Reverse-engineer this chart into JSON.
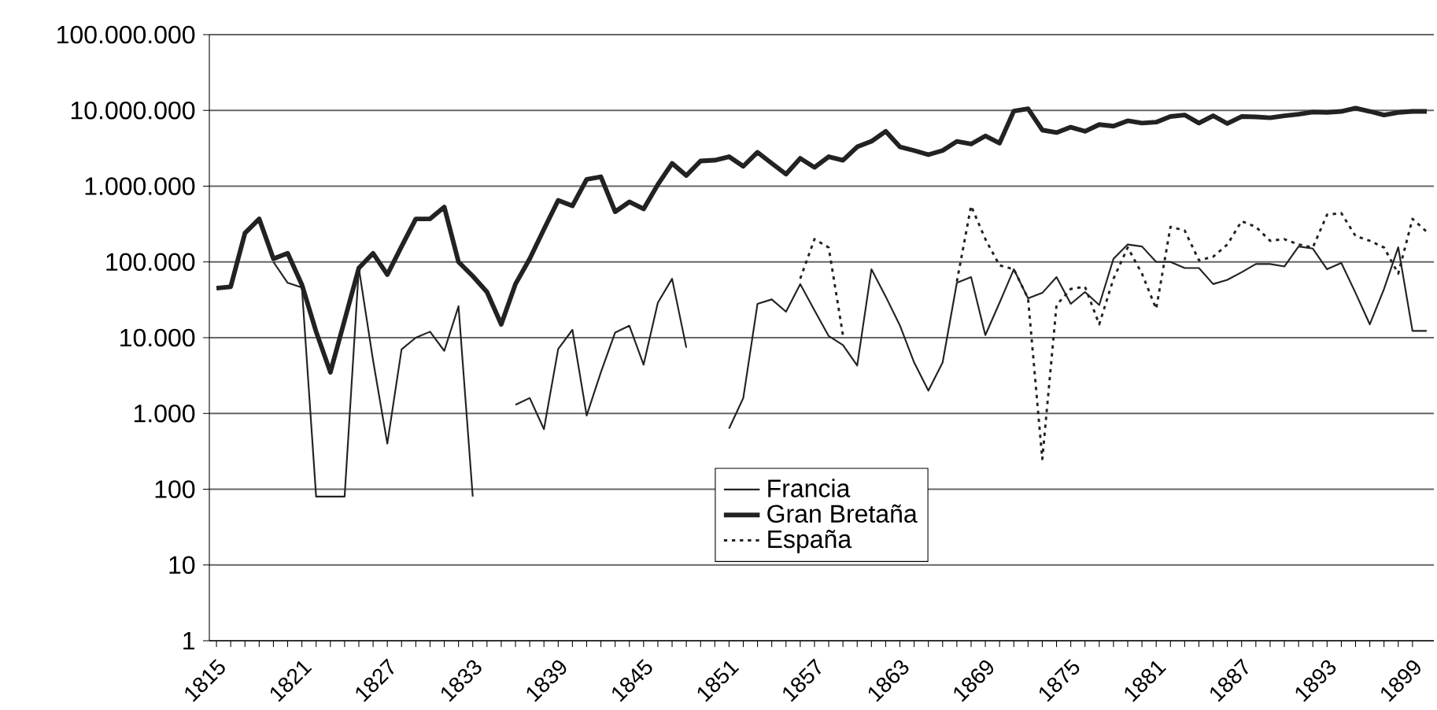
{
  "chart_data": {
    "type": "line",
    "x": [
      1815,
      1816,
      1817,
      1818,
      1819,
      1820,
      1821,
      1822,
      1823,
      1824,
      1825,
      1826,
      1827,
      1828,
      1829,
      1830,
      1831,
      1832,
      1833,
      1834,
      1835,
      1836,
      1837,
      1838,
      1839,
      1840,
      1841,
      1842,
      1843,
      1844,
      1845,
      1846,
      1847,
      1848,
      1849,
      1850,
      1851,
      1852,
      1853,
      1854,
      1855,
      1856,
      1857,
      1858,
      1859,
      1860,
      1861,
      1862,
      1863,
      1864,
      1865,
      1866,
      1867,
      1868,
      1869,
      1870,
      1871,
      1872,
      1873,
      1874,
      1875,
      1876,
      1877,
      1878,
      1879,
      1880,
      1881,
      1882,
      1883,
      1884,
      1885,
      1886,
      1887,
      1888,
      1889,
      1890,
      1891,
      1892,
      1893,
      1894,
      1895,
      1896,
      1897,
      1898,
      1899,
      1900
    ],
    "series": [
      {
        "name": "Francia",
        "color": "#222222",
        "line_style": "solid",
        "values": [
          null,
          null,
          null,
          null,
          100000,
          53000,
          46000,
          80,
          80,
          80,
          83000,
          5000,
          400,
          7000,
          10000,
          12000,
          6700,
          26000,
          80,
          null,
          null,
          1300,
          1600,
          620,
          7100,
          12700,
          940,
          3500,
          11700,
          14400,
          4400,
          29000,
          60000,
          7400,
          null,
          null,
          630,
          1600,
          28000,
          32000,
          22000,
          51000,
          23000,
          10500,
          8000,
          4300,
          80000,
          35000,
          14500,
          4700,
          2000,
          4700,
          53000,
          63000,
          10800,
          29000,
          80000,
          33000,
          39000,
          63000,
          28000,
          40000,
          27000,
          110000,
          170000,
          160000,
          100000,
          100000,
          83000,
          83000,
          51000,
          58000,
          73000,
          94000,
          94000,
          87000,
          160000,
          150000,
          80000,
          97000,
          39000,
          15000,
          44000,
          156000,
          12300,
          12300
        ]
      },
      {
        "name": "Gran Bretaña",
        "color": "#222222",
        "line_style": "solid",
        "values": [
          45000,
          47000,
          240000,
          370000,
          110000,
          130000,
          50000,
          12000,
          3500,
          17000,
          83000,
          130000,
          68000,
          160000,
          370000,
          370000,
          530000,
          100000,
          65000,
          40000,
          15000,
          51000,
          110000,
          270000,
          650000,
          550000,
          1230000,
          1330000,
          460000,
          620000,
          500000,
          1050000,
          2000000,
          1380000,
          2150000,
          2200000,
          2450000,
          1830000,
          2800000,
          2000000,
          1440000,
          2330000,
          1770000,
          2450000,
          2200000,
          3300000,
          3900000,
          5300000,
          3300000,
          2950000,
          2600000,
          2950000,
          3900000,
          3600000,
          4600000,
          3700000,
          9800000,
          10500000,
          5500000,
          5100000,
          6000000,
          5300000,
          6500000,
          6200000,
          7300000,
          6800000,
          7000000,
          8300000,
          8700000,
          6800000,
          8500000,
          6700000,
          8300000,
          8200000,
          8000000,
          8500000,
          8900000,
          9500000,
          9400000,
          9700000,
          10700000,
          9700000,
          8700000,
          9400000,
          9700000,
          9700000
        ]
      },
      {
        "name": "España",
        "color": "#222222",
        "line_style": "dotted",
        "values": [
          null,
          null,
          null,
          null,
          null,
          null,
          null,
          null,
          null,
          null,
          null,
          null,
          null,
          null,
          null,
          null,
          null,
          null,
          null,
          null,
          null,
          null,
          null,
          null,
          null,
          null,
          null,
          null,
          null,
          null,
          null,
          null,
          null,
          null,
          null,
          null,
          null,
          null,
          null,
          null,
          null,
          60000,
          200000,
          155000,
          10800,
          null,
          null,
          null,
          null,
          null,
          null,
          null,
          55000,
          550000,
          200000,
          90000,
          80000,
          33000,
          250,
          27000,
          44000,
          47000,
          15000,
          60000,
          155000,
          70000,
          24000,
          290000,
          260000,
          105000,
          117000,
          170000,
          345000,
          290000,
          190000,
          200000,
          170000,
          155000,
          420000,
          440000,
          220000,
          190000,
          155000,
          70000,
          370000,
          250000
        ]
      }
    ],
    "xlim": [
      1814.5,
      1900.5
    ],
    "xticks": [
      1815,
      1821,
      1827,
      1833,
      1839,
      1845,
      1851,
      1857,
      1863,
      1869,
      1875,
      1881,
      1887,
      1893,
      1899
    ],
    "log": "y",
    "ylim": [
      1,
      100000000
    ],
    "yticks": [
      1,
      10,
      100,
      {
        "value": 1000,
        "label": "1.000"
      },
      {
        "value": 10000,
        "label": "10.000"
      },
      {
        "value": 100000,
        "label": "100.000"
      },
      {
        "value": 1000000,
        "label": "1.000.000"
      },
      {
        "value": 10000000,
        "label": "10.000.000"
      },
      {
        "value": 100000000,
        "label": "100.000.000"
      }
    ],
    "grid": "y",
    "legend": "bottom"
  }
}
